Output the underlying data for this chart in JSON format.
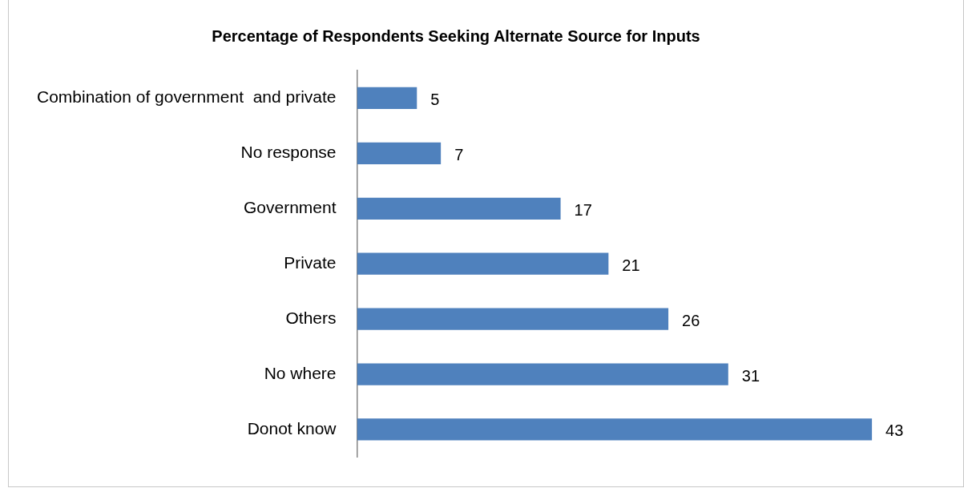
{
  "chart_data": {
    "type": "bar",
    "orientation": "horizontal",
    "title": "Percentage of Respondents Seeking Alternate Source for Inputs",
    "categories": [
      "Combination of government  and private",
      "No response",
      "Government",
      "Private",
      "Others",
      "No where",
      "Donot know"
    ],
    "values": [
      5,
      7,
      17,
      21,
      26,
      31,
      43
    ],
    "color": "#4f81bd",
    "data_labels": true,
    "legend": false,
    "tick_labels": "y"
  }
}
